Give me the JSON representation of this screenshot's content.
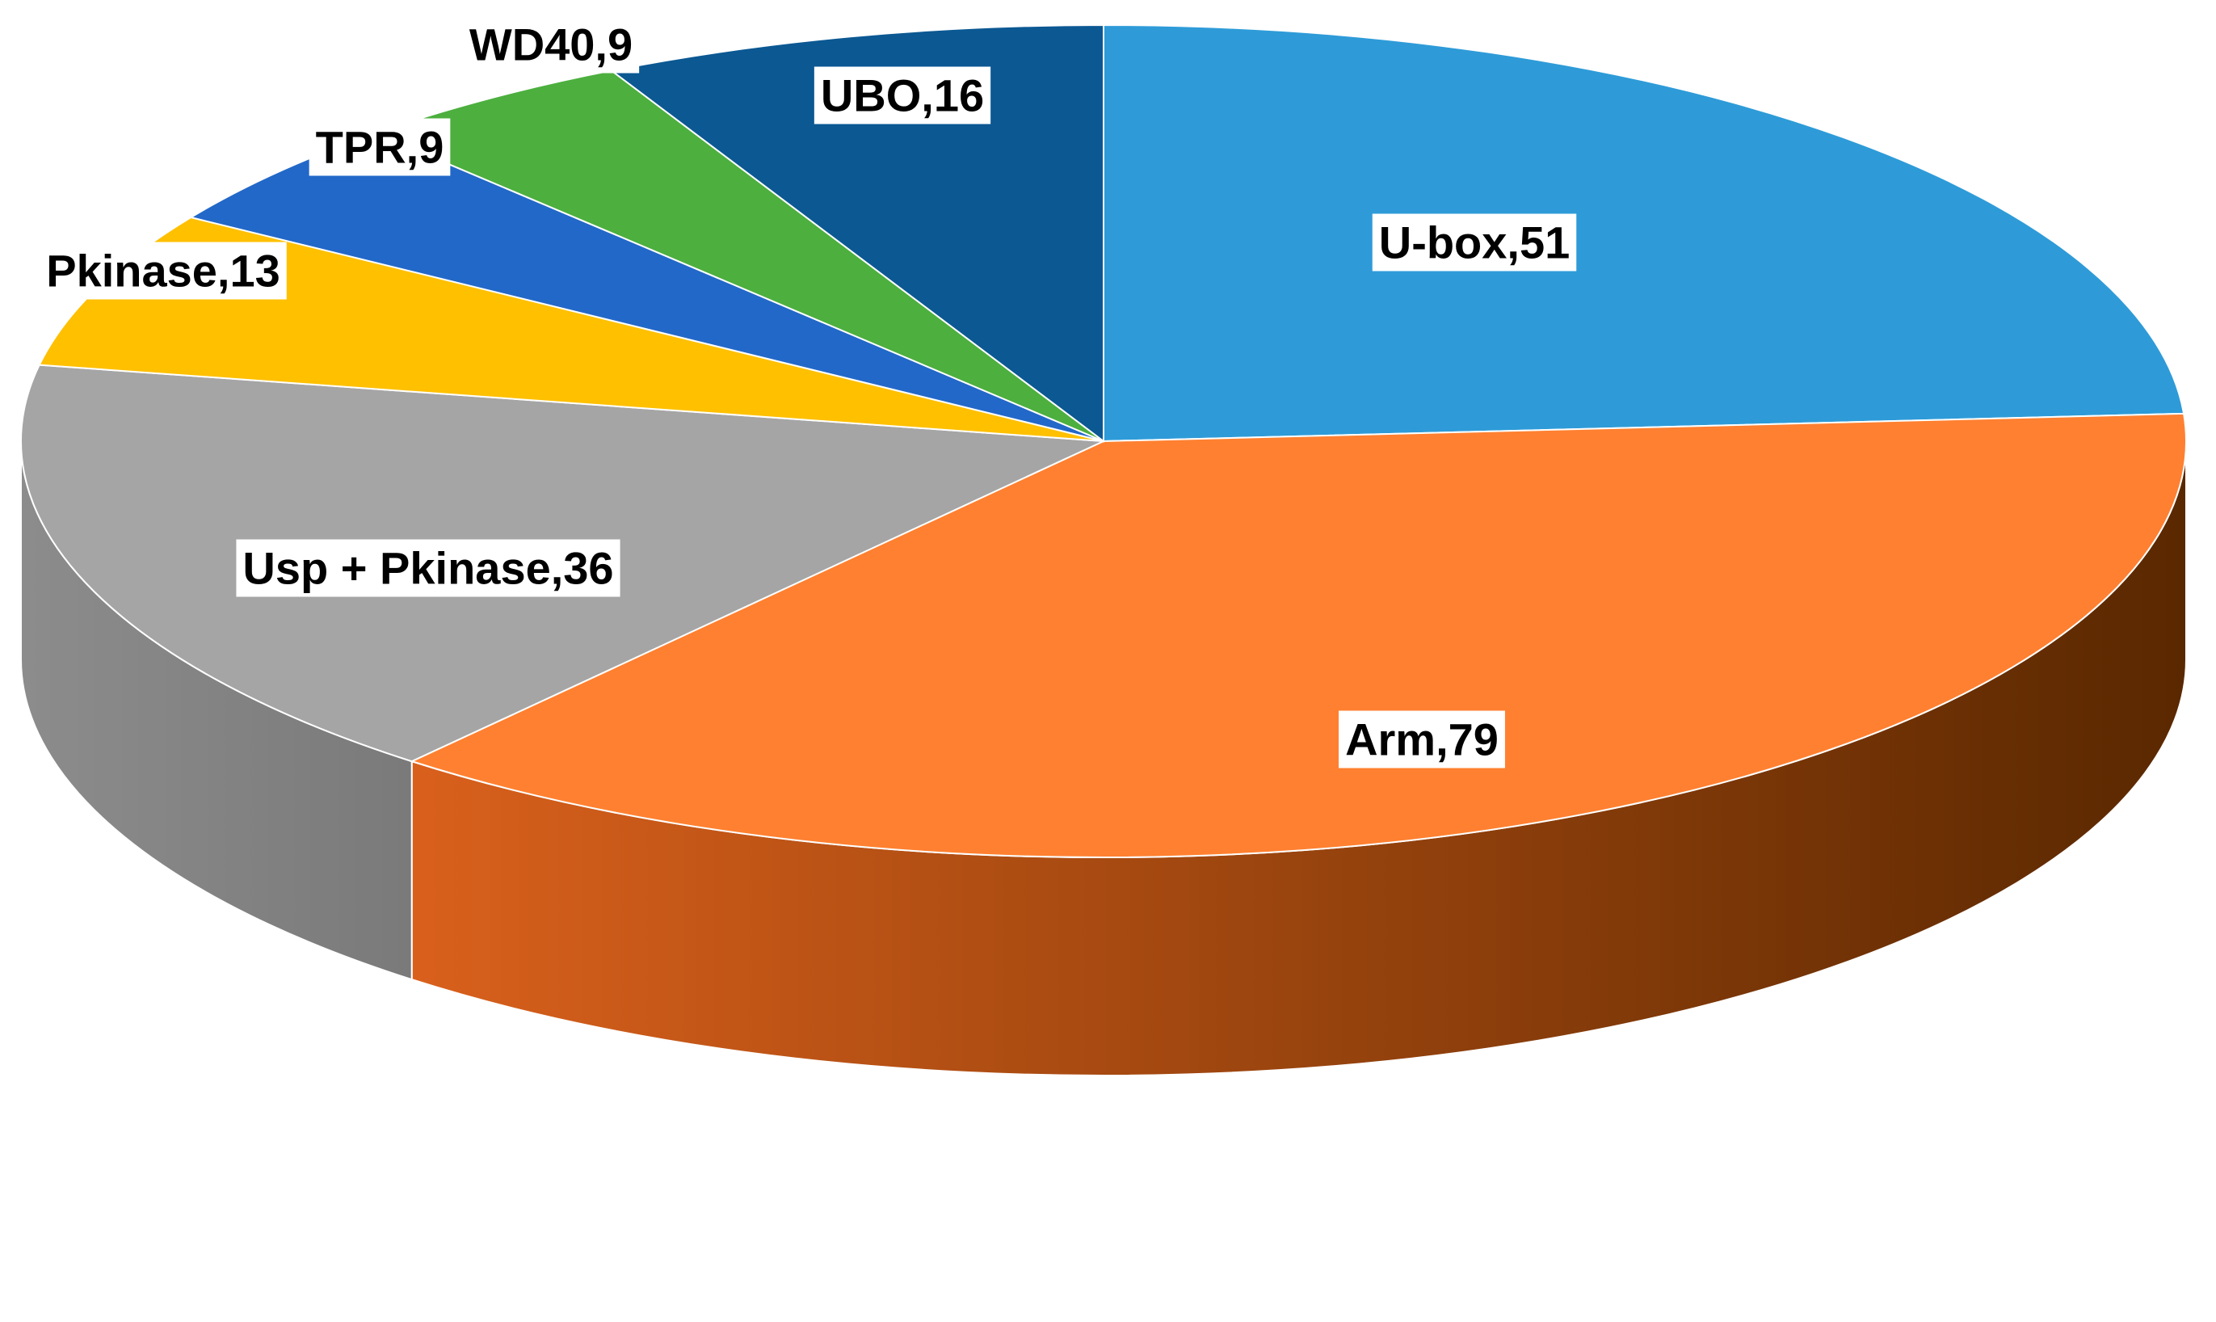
{
  "chart_data": {
    "type": "pie",
    "style": "3d",
    "title": "",
    "label_format": "{name},{value}",
    "slices": [
      {
        "name": "U-box",
        "value": 51,
        "color": "#2E9BD8",
        "label": "U-box,51"
      },
      {
        "name": "Arm",
        "value": 79,
        "color": "#FF8030",
        "label": "Arm,79"
      },
      {
        "name": "Usp + Pkinase",
        "value": 36,
        "color": "#A5A5A5",
        "label": "Usp + Pkinase,36"
      },
      {
        "name": "Pkinase",
        "value": 13,
        "color": "#FFC000",
        "label": "Pkinase,13"
      },
      {
        "name": "TPR",
        "value": 9,
        "color": "#2268C8",
        "label": "TPR,9"
      },
      {
        "name": "WD40",
        "value": 9,
        "color": "#4CAF3E",
        "label": "WD40,9"
      },
      {
        "name": "UBO",
        "value": 16,
        "color": "#0B5893",
        "label": "UBO,16"
      }
    ]
  }
}
